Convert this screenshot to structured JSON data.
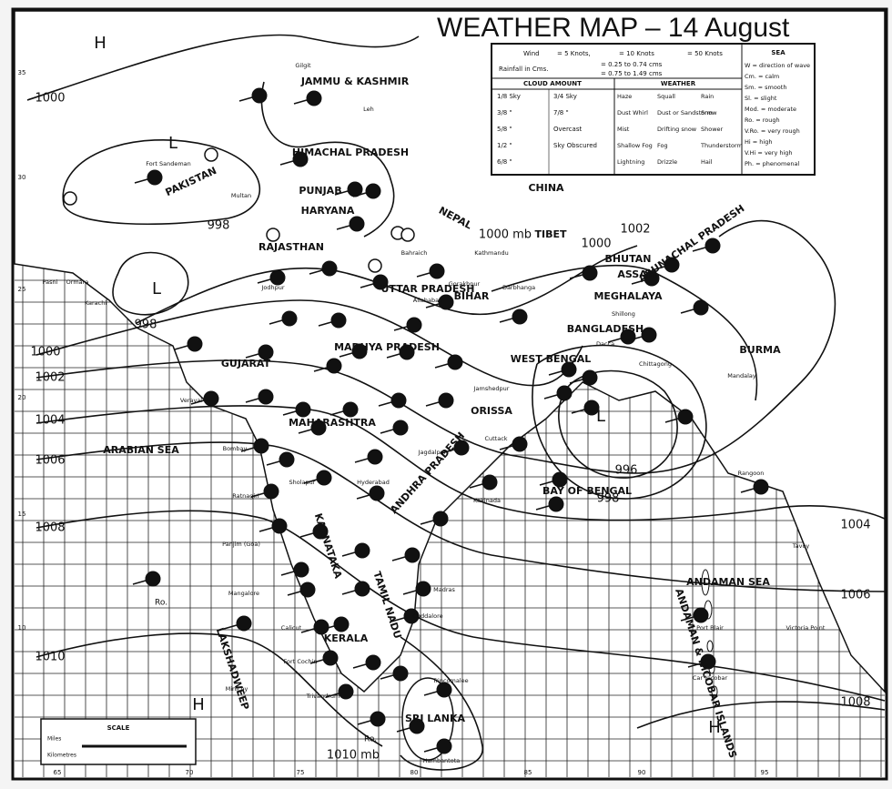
{
  "title": "WEATHER MAP – 14 August",
  "legend": {
    "wind_label": "Wind",
    "wind_keys": [
      "= 5 Knots,",
      "= 10 Knots",
      "= 50 Knots"
    ],
    "rainfall_label": "Rainfall in Cms.",
    "rainfall_keys": [
      "= 0.25 to 0.74 cms",
      "= 0.75 to 1.49 cms"
    ],
    "cloud_heading": "CLOUD AMOUNT",
    "cloud_items": [
      "1/8 Sky",
      "3/4 Sky",
      "3/8 \"",
      "7/8 \"",
      "5/8 \"",
      "Overcast",
      "1/2 \"",
      "Sky Obscured",
      "6/8 \""
    ],
    "weather_heading": "WEATHER",
    "weather_items": [
      "Haze",
      "Squall",
      "Rain",
      "Dust Whirl",
      "Dust or Sandstorm",
      "Snow",
      "Mist",
      "Drifting snow",
      "Shower",
      "Shallow Fog",
      "Fog",
      "Thunderstorm",
      "Lightning",
      "Drizzle",
      "Hail"
    ],
    "sea_heading": "SEA",
    "sea_items": [
      "W = direction of wave",
      "Cm. = calm",
      "Sm. = smooth",
      "Sl. = slight",
      "Mod. = moderate",
      "Ro. = rough",
      "V.Ro. = very rough",
      "Hi = high",
      "V.Hi = very high",
      "Ph. = phenomenal"
    ]
  },
  "regions": [
    "JAMMU & KASHMIR",
    "HIMACHAL PRADESH",
    "PUNJAB",
    "HARYANA",
    "PAKISTAN",
    "RAJASTHAN",
    "GUJARAT",
    "MADHYA PRADESH",
    "MAHARASHTRA",
    "ARABIAN SEA",
    "KARNATAKA",
    "ANDHRA PRADESH",
    "ORISSA",
    "UTTAR PRADESH",
    "BIHAR",
    "NEPAL",
    "TIBET",
    "CHINA",
    "BHUTAN",
    "ARUNACHAL PRADESH",
    "ASSAM",
    "MEGHALAYA",
    "BANGLADESH",
    "WEST BENGAL",
    "BURMA",
    "BAY OF BENGAL",
    "ANDAMAN SEA",
    "LAKSHADWEEP",
    "TAMIL NADU",
    "KERALA",
    "SRI LANKA",
    "ANDAMAN & NICOBAR ISLANDS"
  ],
  "isobar_labels": [
    "1000",
    "998",
    "998",
    "1000",
    "1002",
    "1004",
    "1006",
    "1008",
    "1010",
    "1000 mb",
    "1000",
    "1002",
    "996",
    "998",
    "1004",
    "1006",
    "1008",
    "1010 mb"
  ],
  "pressure_centers": [
    "H",
    "L",
    "L",
    "L",
    "H",
    "H"
  ],
  "cities": [
    "Gilgit",
    "Leh",
    "Fort Sandeman",
    "Multan",
    "Karachi",
    "Ormara",
    "Pasni",
    "Jodhpur",
    "Veraval",
    "Bombay",
    "Ratnagiri",
    "Panjim (Goa)",
    "Mangalore",
    "Calicut",
    "Fort Cochin",
    "Trivandrum",
    "Minicoy",
    "Madras",
    "Cuddalore",
    "Trincomalee",
    "Hambantota",
    "Cuttack",
    "Jagdalpur",
    "Jamshedpur",
    "Bahraich",
    "Gorakhpur",
    "Allahabad",
    "Kathmandu",
    "Darbhanga",
    "Dacca",
    "Chittagong",
    "Shillong",
    "Mandalay",
    "Rangoon",
    "Tavoy",
    "Port Blair",
    "Car Nicobar",
    "Victoria Point",
    "Kakinada",
    "Hyderabad",
    "Sholapur"
  ],
  "sea_state_labels": [
    "Ro.",
    "Ro."
  ],
  "longitude_labels": [
    "65",
    "70",
    "75",
    "80",
    "85",
    "90",
    "95"
  ],
  "latitude_labels": [
    "35",
    "30",
    "25",
    "20",
    "15",
    "10"
  ],
  "scale": {
    "title": "SCALE",
    "miles": "Miles",
    "kilometres": "Kilometres"
  }
}
